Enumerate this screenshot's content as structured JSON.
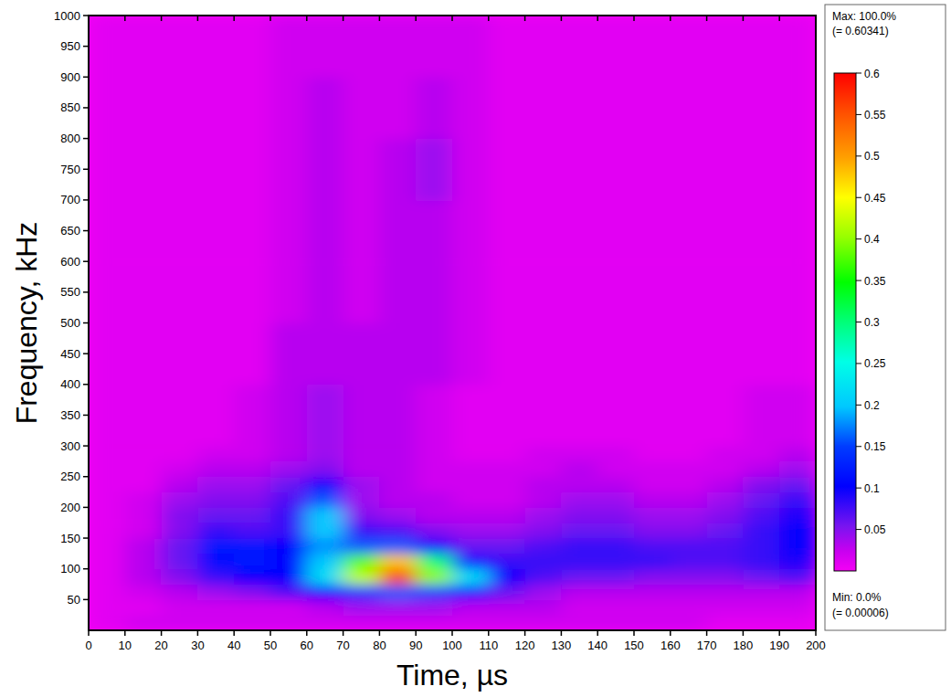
{
  "chart_data": {
    "type": "heatmap",
    "x_label": "Time, µs",
    "y_label": "Frequency, kHz",
    "xlim": [
      0,
      200
    ],
    "ylim": [
      0,
      1000
    ],
    "xticks": [
      0,
      10,
      20,
      30,
      40,
      50,
      60,
      70,
      80,
      90,
      100,
      110,
      120,
      130,
      140,
      150,
      160,
      170,
      180,
      190,
      200
    ],
    "yticks": [
      50,
      100,
      150,
      200,
      250,
      300,
      350,
      400,
      450,
      500,
      550,
      600,
      650,
      700,
      750,
      800,
      850,
      900,
      950,
      1000
    ],
    "x_edges": [
      0,
      10,
      20,
      30,
      40,
      50,
      60,
      70,
      80,
      90,
      100,
      110,
      120,
      130,
      140,
      150,
      160,
      170,
      180,
      190,
      200
    ],
    "y_edges": [
      0,
      25,
      50,
      75,
      100,
      125,
      150,
      175,
      200,
      225,
      250,
      275,
      300,
      400,
      500,
      600,
      700,
      800,
      900,
      1000
    ],
    "cells": [
      [
        0.01,
        0.02,
        0.02,
        0.02,
        0.02,
        0.02,
        0.02,
        0.02,
        0.02,
        0.02,
        0.02,
        0.02,
        0.02,
        0.02,
        0.02,
        0.02,
        0.02,
        0.01,
        0.01,
        0.01
      ],
      [
        0.01,
        0.01,
        0.02,
        0.02,
        0.02,
        0.02,
        0.03,
        0.04,
        0.04,
        0.04,
        0.03,
        0.03,
        0.03,
        0.02,
        0.02,
        0.02,
        0.02,
        0.02,
        0.02,
        0.02
      ],
      [
        0.01,
        0.02,
        0.03,
        0.04,
        0.05,
        0.07,
        0.1,
        0.14,
        0.16,
        0.15,
        0.12,
        0.06,
        0.04,
        0.03,
        0.03,
        0.03,
        0.03,
        0.03,
        0.03,
        0.03
      ],
      [
        0.01,
        0.03,
        0.05,
        0.08,
        0.1,
        0.1,
        0.22,
        0.42,
        0.56,
        0.4,
        0.22,
        0.1,
        0.07,
        0.06,
        0.06,
        0.05,
        0.05,
        0.05,
        0.06,
        0.07
      ],
      [
        0.01,
        0.03,
        0.06,
        0.11,
        0.12,
        0.1,
        0.2,
        0.38,
        0.48,
        0.3,
        0.12,
        0.08,
        0.08,
        0.08,
        0.08,
        0.08,
        0.07,
        0.07,
        0.08,
        0.09
      ],
      [
        0.01,
        0.03,
        0.06,
        0.12,
        0.12,
        0.1,
        0.18,
        0.16,
        0.16,
        0.1,
        0.06,
        0.06,
        0.07,
        0.08,
        0.08,
        0.07,
        0.07,
        0.07,
        0.08,
        0.1
      ],
      [
        0.01,
        0.02,
        0.05,
        0.08,
        0.07,
        0.08,
        0.2,
        0.08,
        0.07,
        0.05,
        0.04,
        0.04,
        0.05,
        0.06,
        0.06,
        0.05,
        0.05,
        0.06,
        0.08,
        0.1
      ],
      [
        0.01,
        0.02,
        0.05,
        0.06,
        0.06,
        0.08,
        0.2,
        0.05,
        0.04,
        0.03,
        0.03,
        0.03,
        0.04,
        0.05,
        0.05,
        0.04,
        0.04,
        0.05,
        0.07,
        0.09
      ],
      [
        0.01,
        0.02,
        0.04,
        0.05,
        0.05,
        0.07,
        0.16,
        0.04,
        0.03,
        0.03,
        0.02,
        0.02,
        0.03,
        0.04,
        0.04,
        0.03,
        0.03,
        0.04,
        0.06,
        0.08
      ],
      [
        0.01,
        0.01,
        0.03,
        0.04,
        0.04,
        0.06,
        0.1,
        0.04,
        0.03,
        0.02,
        0.02,
        0.02,
        0.03,
        0.03,
        0.03,
        0.02,
        0.02,
        0.03,
        0.05,
        0.06
      ],
      [
        0.01,
        0.01,
        0.02,
        0.03,
        0.03,
        0.04,
        0.05,
        0.03,
        0.03,
        0.02,
        0.02,
        0.02,
        0.02,
        0.03,
        0.02,
        0.02,
        0.02,
        0.02,
        0.03,
        0.04
      ],
      [
        0.01,
        0.01,
        0.01,
        0.02,
        0.02,
        0.03,
        0.04,
        0.03,
        0.03,
        0.02,
        0.01,
        0.01,
        0.02,
        0.02,
        0.02,
        0.01,
        0.01,
        0.02,
        0.02,
        0.03
      ],
      [
        0.01,
        0.01,
        0.01,
        0.01,
        0.02,
        0.03,
        0.04,
        0.03,
        0.03,
        0.02,
        0.01,
        0.01,
        0.01,
        0.01,
        0.01,
        0.01,
        0.01,
        0.01,
        0.02,
        0.02
      ],
      [
        0.01,
        0.01,
        0.01,
        0.01,
        0.01,
        0.03,
        0.03,
        0.03,
        0.03,
        0.03,
        0.02,
        0.01,
        0.01,
        0.01,
        0.01,
        0.01,
        0.01,
        0.01,
        0.01,
        0.01
      ],
      [
        0.01,
        0.01,
        0.01,
        0.01,
        0.01,
        0.02,
        0.03,
        0.02,
        0.03,
        0.03,
        0.02,
        0.01,
        0.01,
        0.01,
        0.01,
        0.01,
        0.01,
        0.01,
        0.01,
        0.01
      ],
      [
        0.01,
        0.01,
        0.01,
        0.01,
        0.01,
        0.02,
        0.03,
        0.02,
        0.03,
        0.03,
        0.02,
        0.01,
        0.01,
        0.01,
        0.01,
        0.01,
        0.01,
        0.01,
        0.01,
        0.01
      ],
      [
        0.01,
        0.01,
        0.01,
        0.01,
        0.01,
        0.02,
        0.03,
        0.02,
        0.03,
        0.04,
        0.02,
        0.01,
        0.01,
        0.01,
        0.01,
        0.01,
        0.01,
        0.01,
        0.01,
        0.01
      ],
      [
        0.01,
        0.01,
        0.01,
        0.01,
        0.01,
        0.02,
        0.03,
        0.02,
        0.02,
        0.03,
        0.02,
        0.01,
        0.01,
        0.01,
        0.01,
        0.01,
        0.01,
        0.01,
        0.01,
        0.01
      ],
      [
        0.01,
        0.01,
        0.01,
        0.01,
        0.01,
        0.02,
        0.02,
        0.02,
        0.02,
        0.02,
        0.02,
        0.01,
        0.01,
        0.01,
        0.01,
        0.01,
        0.01,
        0.01,
        0.01,
        0.01
      ]
    ],
    "colorbar": {
      "range": [
        0,
        0.6
      ],
      "ticks": [
        0.05,
        0.1,
        0.15,
        0.2,
        0.25,
        0.3,
        0.35,
        0.4,
        0.45,
        0.5,
        0.55,
        0.6
      ],
      "max_label": "Max: 100.0%",
      "max_value_label": "(= 0.60341)",
      "min_label": "Min: 0.0%",
      "min_value_label": "(= 0.00006)"
    }
  }
}
